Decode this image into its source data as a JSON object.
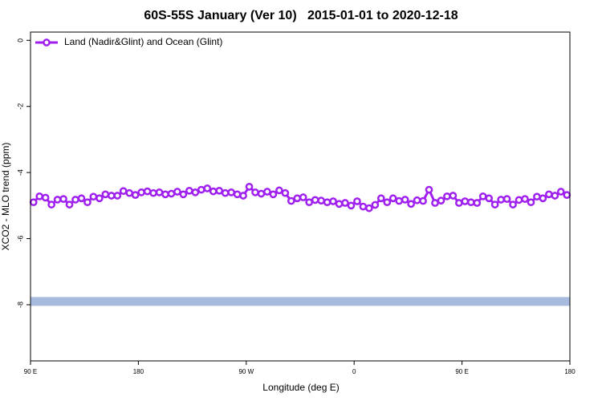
{
  "chart_data": {
    "type": "line",
    "title": "60S-55S January (Ver 10)   2015-01-01 to 2020-12-18",
    "xlabel": "Longitude (deg E)",
    "ylabel": "XCO2 - MLO trend (ppm)",
    "xlim": [
      90,
      540
    ],
    "xticks": [
      {
        "value": 90,
        "label": "90 E"
      },
      {
        "value": 180,
        "label": "180"
      },
      {
        "value": 270,
        "label": "90 W"
      },
      {
        "value": 360,
        "label": "0"
      },
      {
        "value": 450,
        "label": "90 E"
      },
      {
        "value": 540,
        "label": "180"
      }
    ],
    "ylim": [
      -9.7,
      0.25
    ],
    "yticks": [
      0,
      -2,
      -4,
      -6,
      -8
    ],
    "legend": "top-left",
    "x": [
      92.5,
      97.5,
      102.5,
      107.5,
      112.5,
      117.5,
      122.5,
      127.5,
      132.5,
      137.5,
      142.5,
      147.5,
      152.5,
      157.5,
      162.5,
      167.5,
      172.5,
      177.5,
      182.5,
      187.5,
      192.5,
      197.5,
      202.5,
      207.5,
      212.5,
      217.5,
      222.5,
      227.5,
      232.5,
      237.5,
      242.5,
      247.5,
      252.5,
      257.5,
      262.5,
      267.5,
      272.5,
      277.5,
      282.5,
      287.5,
      292.5,
      297.5,
      302.5,
      307.5,
      312.5,
      317.5,
      322.5,
      327.5,
      332.5,
      337.5,
      342.5,
      347.5,
      352.5,
      357.5,
      362.5,
      367.5,
      372.5,
      377.5,
      382.5,
      387.5,
      392.5,
      397.5,
      402.5,
      407.5,
      412.5,
      417.5,
      422.5,
      427.5,
      432.5,
      437.5,
      442.5,
      447.5,
      452.5,
      457.5,
      462.5,
      467.5,
      472.5,
      477.5,
      482.5,
      487.5,
      492.5,
      497.5,
      502.5,
      507.5,
      512.5,
      517.5,
      522.5,
      527.5,
      532.5,
      537.5
    ],
    "series": [
      {
        "name": "Land (Nadir&Glint) and Ocean (Glint)",
        "color": "#a020f0",
        "values": [
          -4.9,
          -4.72,
          -4.76,
          -4.97,
          -4.82,
          -4.8,
          -4.97,
          -4.82,
          -4.78,
          -4.9,
          -4.73,
          -4.78,
          -4.66,
          -4.7,
          -4.7,
          -4.56,
          -4.62,
          -4.68,
          -4.6,
          -4.57,
          -4.62,
          -4.6,
          -4.66,
          -4.64,
          -4.58,
          -4.66,
          -4.55,
          -4.6,
          -4.52,
          -4.48,
          -4.57,
          -4.55,
          -4.62,
          -4.6,
          -4.66,
          -4.7,
          -4.43,
          -4.6,
          -4.64,
          -4.58,
          -4.66,
          -4.54,
          -4.62,
          -4.86,
          -4.78,
          -4.75,
          -4.9,
          -4.83,
          -4.85,
          -4.9,
          -4.87,
          -4.95,
          -4.92,
          -5.0,
          -4.87,
          -5.03,
          -5.08,
          -4.98,
          -4.78,
          -4.9,
          -4.78,
          -4.86,
          -4.82,
          -4.95,
          -4.84,
          -4.86,
          -4.52,
          -4.92,
          -4.85,
          -4.72,
          -4.7,
          -4.92,
          -4.87,
          -4.9,
          -4.92,
          -4.72,
          -4.78,
          -4.97,
          -4.82,
          -4.8,
          -4.97,
          -4.83,
          -4.8,
          -4.9,
          -4.73,
          -4.78,
          -4.66,
          -4.7,
          -4.58,
          -4.68
        ]
      }
    ],
    "reference_band": {
      "value": -7.9,
      "color": "#a7bbdf"
    }
  }
}
